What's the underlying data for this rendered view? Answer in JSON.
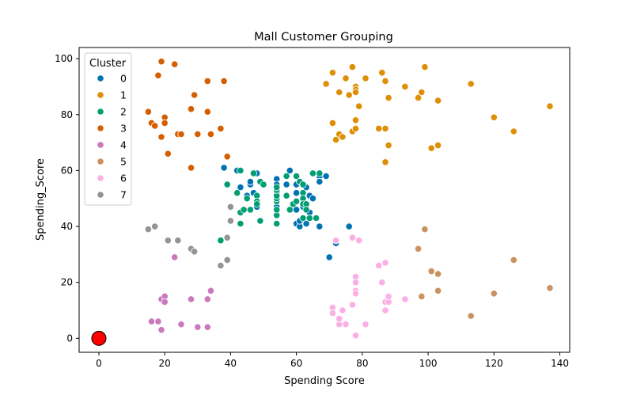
{
  "chart_data": {
    "type": "scatter",
    "title": "Mall Customer Grouping",
    "xlabel": "Spending Score",
    "ylabel": "Spending_Score",
    "xlim": [
      -6,
      143
    ],
    "ylim": [
      -5,
      104
    ],
    "xticks": [
      0,
      20,
      40,
      60,
      80,
      100,
      120,
      140
    ],
    "yticks": [
      0,
      20,
      40,
      60,
      80,
      100
    ],
    "grid": false,
    "legend": {
      "title": "Cluster",
      "placement": "top-left"
    },
    "series": [
      {
        "name": "0",
        "color": "#0173b2",
        "points": [
          [
            38,
            61
          ],
          [
            42,
            60
          ],
          [
            43,
            54
          ],
          [
            45,
            51
          ],
          [
            46,
            55
          ],
          [
            46,
            56
          ],
          [
            47,
            52
          ],
          [
            48,
            47
          ],
          [
            48,
            59
          ],
          [
            50,
            55
          ],
          [
            54,
            57
          ],
          [
            54,
            55
          ],
          [
            54,
            52
          ],
          [
            54,
            47
          ],
          [
            57,
            55
          ],
          [
            58,
            60
          ],
          [
            60,
            49
          ],
          [
            60,
            52
          ],
          [
            60,
            55
          ],
          [
            60,
            41
          ],
          [
            60,
            46
          ],
          [
            61,
            40
          ],
          [
            61,
            42
          ],
          [
            62,
            47
          ],
          [
            63,
            54
          ],
          [
            63,
            41
          ],
          [
            64,
            45
          ],
          [
            64,
            51
          ],
          [
            65,
            50
          ],
          [
            67,
            58
          ],
          [
            67,
            56
          ],
          [
            67,
            40
          ],
          [
            69,
            58
          ],
          [
            70,
            29
          ],
          [
            76,
            40
          ],
          [
            72,
            34
          ]
        ]
      },
      {
        "name": "1",
        "color": "#de8f05",
        "points": [
          [
            69,
            91
          ],
          [
            71,
            95
          ],
          [
            71,
            77
          ],
          [
            72,
            71
          ],
          [
            73,
            88
          ],
          [
            73,
            73
          ],
          [
            74,
            72
          ],
          [
            75,
            93
          ],
          [
            76,
            87
          ],
          [
            77,
            97
          ],
          [
            77,
            74
          ],
          [
            78,
            90
          ],
          [
            78,
            89
          ],
          [
            78,
            88
          ],
          [
            78,
            78
          ],
          [
            78,
            75
          ],
          [
            79,
            83
          ],
          [
            81,
            93
          ],
          [
            85,
            75
          ],
          [
            86,
            95
          ],
          [
            87,
            92
          ],
          [
            87,
            75
          ],
          [
            87,
            63
          ],
          [
            88,
            86
          ],
          [
            88,
            69
          ],
          [
            93,
            90
          ],
          [
            97,
            86
          ],
          [
            98,
            88
          ],
          [
            99,
            97
          ],
          [
            101,
            68
          ],
          [
            103,
            85
          ],
          [
            103,
            69
          ],
          [
            113,
            91
          ],
          [
            120,
            79
          ],
          [
            126,
            74
          ],
          [
            137,
            83
          ]
        ]
      },
      {
        "name": "2",
        "color": "#029e73",
        "points": [
          [
            39,
            55
          ],
          [
            40,
            47
          ],
          [
            42,
            52
          ],
          [
            43,
            60
          ],
          [
            43,
            45
          ],
          [
            44,
            46
          ],
          [
            45,
            50
          ],
          [
            46,
            46
          ],
          [
            47,
            59
          ],
          [
            48,
            51
          ],
          [
            48,
            49
          ],
          [
            48,
            48
          ],
          [
            49,
            42
          ],
          [
            49,
            56
          ],
          [
            50,
            55
          ],
          [
            54,
            41
          ],
          [
            54,
            44
          ],
          [
            54,
            46
          ],
          [
            54,
            49
          ],
          [
            54,
            50
          ],
          [
            54,
            51
          ],
          [
            54,
            53
          ],
          [
            54,
            54
          ],
          [
            57,
            58
          ],
          [
            57,
            51
          ],
          [
            58,
            46
          ],
          [
            59,
            48
          ],
          [
            60,
            49
          ],
          [
            60,
            58
          ],
          [
            61,
            56
          ],
          [
            62,
            55
          ],
          [
            62,
            52
          ],
          [
            62,
            50
          ],
          [
            62,
            48
          ],
          [
            62,
            43
          ],
          [
            63,
            48
          ],
          [
            63,
            46
          ],
          [
            64,
            43
          ],
          [
            65,
            59
          ],
          [
            66,
            43
          ],
          [
            67,
            59
          ],
          [
            37,
            35
          ],
          [
            43,
            41
          ]
        ]
      },
      {
        "name": "3",
        "color": "#d55e00",
        "points": [
          [
            15,
            81
          ],
          [
            16,
            77
          ],
          [
            17,
            76
          ],
          [
            18,
            94
          ],
          [
            19,
            99
          ],
          [
            19,
            72
          ],
          [
            20,
            79
          ],
          [
            20,
            77
          ],
          [
            21,
            66
          ],
          [
            23,
            98
          ],
          [
            24,
            73
          ],
          [
            25,
            73
          ],
          [
            28,
            82
          ],
          [
            28,
            61
          ],
          [
            29,
            87
          ],
          [
            30,
            73
          ],
          [
            33,
            92
          ],
          [
            33,
            81
          ],
          [
            34,
            73
          ],
          [
            37,
            75
          ],
          [
            38,
            92
          ],
          [
            39,
            65
          ]
        ]
      },
      {
        "name": "4",
        "color": "#cc78bc",
        "points": [
          [
            16,
            6
          ],
          [
            18,
            6
          ],
          [
            19,
            3
          ],
          [
            19,
            14
          ],
          [
            20,
            15
          ],
          [
            20,
            13
          ],
          [
            23,
            29
          ],
          [
            25,
            5
          ],
          [
            28,
            14
          ],
          [
            30,
            4
          ],
          [
            33,
            4
          ],
          [
            33,
            14
          ],
          [
            34,
            17
          ]
        ]
      },
      {
        "name": "5",
        "color": "#ca9161",
        "points": [
          [
            97,
            32
          ],
          [
            98,
            15
          ],
          [
            99,
            39
          ],
          [
            101,
            24
          ],
          [
            103,
            23
          ],
          [
            103,
            17
          ],
          [
            113,
            8
          ],
          [
            120,
            16
          ],
          [
            126,
            28
          ],
          [
            137,
            18
          ]
        ]
      },
      {
        "name": "6",
        "color": "#fbafe4",
        "points": [
          [
            71,
            11
          ],
          [
            71,
            9
          ],
          [
            72,
            35
          ],
          [
            73,
            5
          ],
          [
            73,
            7
          ],
          [
            74,
            10
          ],
          [
            75,
            5
          ],
          [
            77,
            12
          ],
          [
            77,
            36
          ],
          [
            78,
            22
          ],
          [
            78,
            20
          ],
          [
            78,
            17
          ],
          [
            78,
            16
          ],
          [
            78,
            1
          ],
          [
            79,
            35
          ],
          [
            81,
            5
          ],
          [
            85,
            26
          ],
          [
            86,
            20
          ],
          [
            87,
            27
          ],
          [
            87,
            13
          ],
          [
            87,
            10
          ],
          [
            88,
            13
          ],
          [
            88,
            15
          ],
          [
            93,
            14
          ]
        ]
      },
      {
        "name": "7",
        "color": "#949494",
        "points": [
          [
            15,
            39
          ],
          [
            17,
            40
          ],
          [
            21,
            35
          ],
          [
            24,
            35
          ],
          [
            28,
            32
          ],
          [
            29,
            31
          ],
          [
            37,
            26
          ],
          [
            39,
            36
          ],
          [
            39,
            28
          ],
          [
            40,
            47
          ],
          [
            40,
            42
          ]
        ]
      }
    ],
    "highlight": {
      "point": [
        0,
        0
      ],
      "color": "#ff0000"
    }
  }
}
